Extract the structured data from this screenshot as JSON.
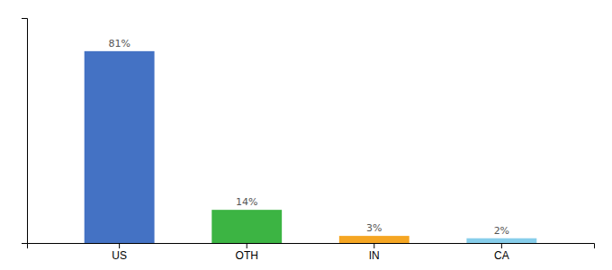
{
  "chart_data": {
    "type": "bar",
    "categories": [
      "US",
      "OTH",
      "IN",
      "CA"
    ],
    "values": [
      81,
      14,
      3,
      2
    ],
    "value_labels": [
      "81%",
      "14%",
      "3%",
      "2%"
    ],
    "data_labels": true,
    "colors": [
      "#4472C4",
      "#3CB443",
      "#F5A623",
      "#87CEEB"
    ],
    "ylim": [
      0,
      95
    ],
    "tick_labels": "x",
    "grid": false
  }
}
